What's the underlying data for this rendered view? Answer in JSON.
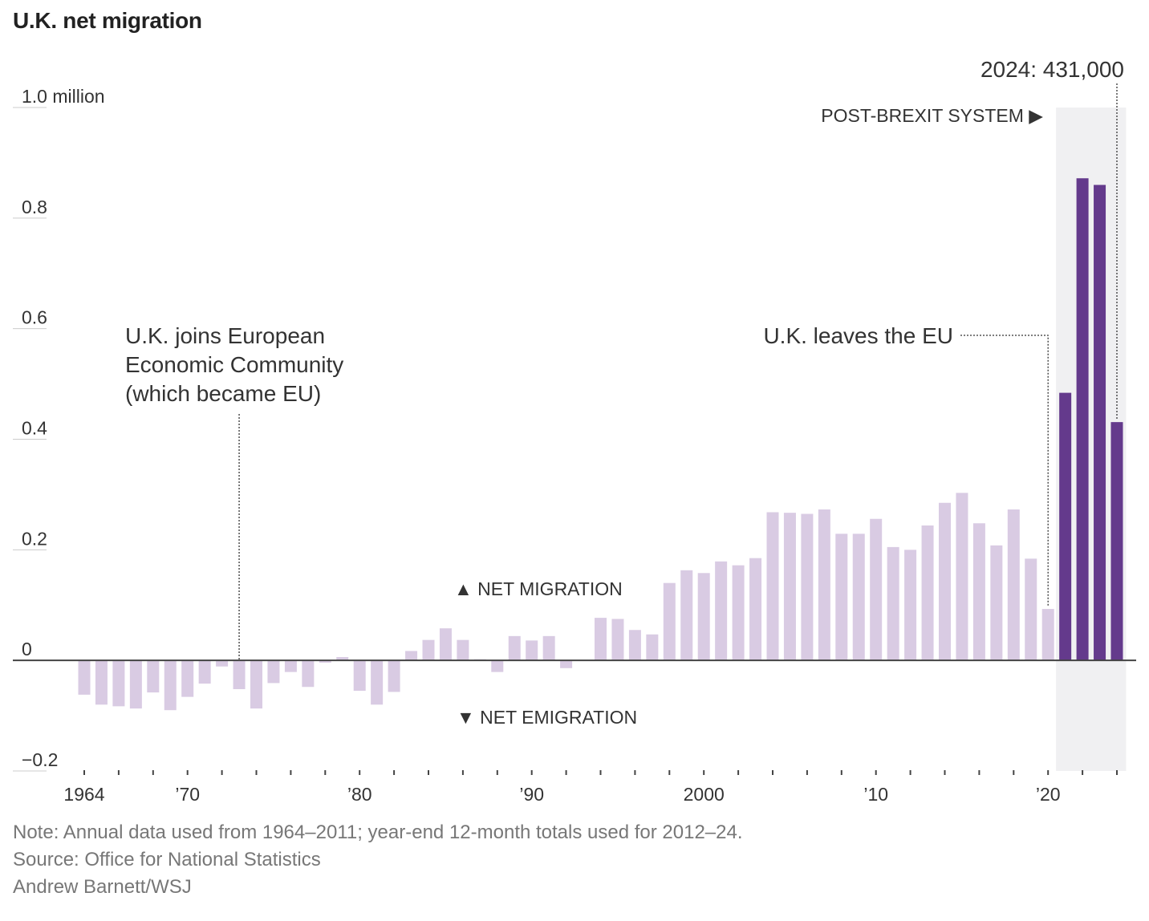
{
  "chart_data": {
    "type": "bar",
    "title": "U.K. net migration",
    "y_unit_label": "million",
    "ylim": [
      -0.2,
      1.0
    ],
    "y_ticks": [
      {
        "value": 1.0,
        "label": "1.0"
      },
      {
        "value": 0.8,
        "label": "0.8"
      },
      {
        "value": 0.6,
        "label": "0.6"
      },
      {
        "value": 0.4,
        "label": "0.4"
      },
      {
        "value": 0.2,
        "label": "0.2"
      },
      {
        "value": 0,
        "label": "0"
      },
      {
        "value": -0.2,
        "label": "−0.2"
      }
    ],
    "x_tick_labels": [
      {
        "year": 1964,
        "label": "1964"
      },
      {
        "year": 1970,
        "label": "’70"
      },
      {
        "year": 1980,
        "label": "’80"
      },
      {
        "year": 1990,
        "label": "’90"
      },
      {
        "year": 2000,
        "label": "2000"
      },
      {
        "year": 2010,
        "label": "’10"
      },
      {
        "year": 2020,
        "label": "’20"
      }
    ],
    "x_range": [
      1964,
      2024
    ],
    "grid": false,
    "series": [
      {
        "years": [
          1964,
          1965,
          1966,
          1967,
          1968,
          1969,
          1970,
          1971,
          1972,
          1973,
          1974,
          1975,
          1976,
          1977,
          1978,
          1979,
          1980,
          1981,
          1982,
          1983,
          1984,
          1985,
          1986,
          1987,
          1988,
          1989,
          1990,
          1991,
          1992,
          1993,
          1994,
          1995,
          1996,
          1997,
          1998,
          1999,
          2000,
          2001,
          2002,
          2003,
          2004,
          2005,
          2006,
          2007,
          2008,
          2009,
          2010,
          2011,
          2012,
          2013,
          2014,
          2015,
          2016,
          2017,
          2018,
          2019,
          2020,
          2021,
          2022,
          2023,
          2024
        ],
        "values": [
          -0.062,
          -0.08,
          -0.083,
          -0.087,
          -0.058,
          -0.09,
          -0.066,
          -0.042,
          -0.011,
          -0.052,
          -0.087,
          -0.041,
          -0.021,
          -0.048,
          -0.004,
          0.006,
          -0.055,
          -0.08,
          -0.057,
          0.017,
          0.037,
          0.058,
          0.037,
          0.002,
          -0.021,
          0.044,
          0.036,
          0.044,
          -0.014,
          null,
          0.077,
          0.075,
          0.055,
          0.047,
          0.14,
          0.163,
          0.158,
          0.179,
          0.172,
          0.185,
          0.268,
          0.267,
          0.265,
          0.273,
          0.229,
          0.229,
          0.256,
          0.205,
          0.2,
          0.244,
          0.285,
          0.303,
          0.248,
          0.208,
          0.273,
          0.184,
          0.093,
          0.484,
          0.872,
          0.86,
          0.431
        ]
      }
    ],
    "highlight_from_year": 2021,
    "colors": {
      "bar": "#d9cbe3",
      "bar_highlight": "#643a8c",
      "shade": "#f0f0f2",
      "axis": "#444444",
      "text": "#333333"
    },
    "annotations": {
      "eec_lines": [
        "U.K. joins European",
        "Economic Community",
        "(which became EU)"
      ],
      "eec_year": 1973,
      "leaves_eu": "U.K. leaves the EU",
      "leaves_eu_year": 2020,
      "post_brexit": "POST-BREXIT SYSTEM ▶",
      "final_value_label": "2024: 431,000",
      "final_value_year": 2024,
      "net_migration": "▲ NET MIGRATION",
      "net_emigration": "▼ NET EMIGRATION"
    }
  },
  "footer": {
    "note": "Note: Annual data used from 1964–2011; year-end 12-month totals used for 2012–24.",
    "source": "Source: Office for National Statistics",
    "credit": "Andrew Barnett/WSJ"
  }
}
